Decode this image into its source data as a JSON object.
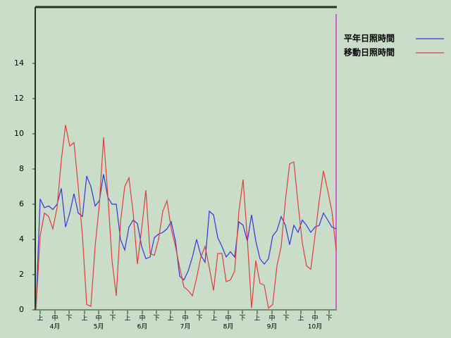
{
  "chart_data": {
    "type": "line",
    "x": [
      0,
      3,
      6,
      9,
      12,
      15,
      18,
      21,
      24,
      27,
      30,
      33,
      36,
      39,
      42,
      45,
      48,
      51,
      54,
      57,
      60,
      63,
      66,
      69,
      72,
      75,
      78,
      81,
      84,
      87,
      90,
      93,
      96,
      99,
      102,
      105,
      108,
      111,
      114,
      117,
      120,
      123,
      126,
      129,
      132,
      135,
      138,
      141,
      144,
      147,
      150,
      153,
      156,
      159,
      162,
      165,
      168,
      171,
      174,
      177,
      180,
      183,
      186,
      189,
      192,
      195,
      198,
      201,
      204,
      207,
      210,
      213
    ],
    "series": [
      {
        "name": "平年日照時間",
        "color": "#3535d8",
        "values": [
          0,
          6.3,
          5.8,
          5.9,
          5.7,
          6.0,
          6.9,
          4.7,
          5.5,
          6.6,
          5.5,
          5.3,
          7.6,
          7.0,
          5.9,
          6.2,
          7.7,
          6.4,
          6.0,
          6.0,
          4.0,
          3.4,
          4.7,
          5.1,
          4.9,
          3.6,
          2.9,
          3.0,
          4.1,
          4.3,
          4.4,
          4.6,
          5.0,
          3.9,
          1.9,
          1.7,
          2.2,
          3.0,
          4.0,
          3.1,
          2.7,
          5.6,
          5.4,
          4.1,
          3.6,
          3.0,
          3.3,
          3.0,
          5.0,
          4.8,
          3.9,
          5.4,
          3.9,
          2.9,
          2.6,
          2.9,
          4.2,
          4.5,
          5.3,
          4.8,
          3.7,
          4.8,
          4.4,
          5.1,
          4.8,
          4.4,
          4.7,
          4.8,
          5.5,
          5.1,
          4.7,
          4.6
        ]
      },
      {
        "name": "移動日照時間",
        "color": "#e23c3c",
        "values": [
          0,
          4.2,
          5.5,
          5.3,
          4.6,
          5.8,
          8.5,
          10.5,
          9.3,
          9.5,
          7.0,
          4.2,
          0.3,
          0.2,
          3.6,
          6.0,
          9.8,
          6.5,
          2.8,
          0.8,
          5.0,
          7.0,
          7.5,
          5.5,
          2.6,
          4.6,
          6.8,
          3.2,
          3.1,
          4.0,
          5.6,
          6.2,
          4.6,
          3.6,
          2.4,
          1.3,
          1.1,
          0.8,
          1.8,
          3.0,
          3.6,
          2.4,
          1.1,
          3.2,
          3.2,
          1.6,
          1.7,
          2.2,
          5.6,
          7.4,
          4.0,
          0.1,
          2.8,
          1.5,
          1.4,
          0.1,
          0.3,
          2.5,
          3.6,
          6.2,
          8.3,
          8.4,
          6.0,
          3.8,
          2.5,
          2.3,
          4.2,
          6.2,
          7.9,
          6.8,
          5.6,
          3.4
        ]
      }
    ],
    "xlim": [
      0,
      214
    ],
    "xticks": [
      {
        "value": 3,
        "label": "上"
      },
      {
        "value": 13.5,
        "label": "中"
      },
      {
        "value": 23.5,
        "label": "下"
      },
      {
        "value": 34.5,
        "label": "上"
      },
      {
        "value": 44.5,
        "label": "中"
      },
      {
        "value": 54.5,
        "label": "下"
      },
      {
        "value": 65,
        "label": "上"
      },
      {
        "value": 75.5,
        "label": "中"
      },
      {
        "value": 85.5,
        "label": "下"
      },
      {
        "value": 95.5,
        "label": "上"
      },
      {
        "value": 106,
        "label": "中"
      },
      {
        "value": 116,
        "label": "下"
      },
      {
        "value": 126.5,
        "label": "上"
      },
      {
        "value": 136.5,
        "label": "中"
      },
      {
        "value": 146.5,
        "label": "下"
      },
      {
        "value": 157,
        "label": "上"
      },
      {
        "value": 167.5,
        "label": "中"
      },
      {
        "value": 177.5,
        "label": "下"
      },
      {
        "value": 188,
        "label": "上"
      },
      {
        "value": 198,
        "label": "中"
      },
      {
        "value": 208,
        "label": "下"
      }
    ],
    "month_labels": [
      {
        "value": 13.5,
        "label": "4月"
      },
      {
        "value": 44.5,
        "label": "5月"
      },
      {
        "value": 75.5,
        "label": "6月"
      },
      {
        "value": 106,
        "label": "7月"
      },
      {
        "value": 136.5,
        "label": "8月"
      },
      {
        "value": 167.5,
        "label": "9月"
      },
      {
        "value": 198,
        "label": "10月"
      }
    ],
    "ylim": [
      0,
      17.2
    ],
    "yticks": [
      0,
      2,
      4,
      6,
      8,
      10,
      12,
      14
    ]
  }
}
